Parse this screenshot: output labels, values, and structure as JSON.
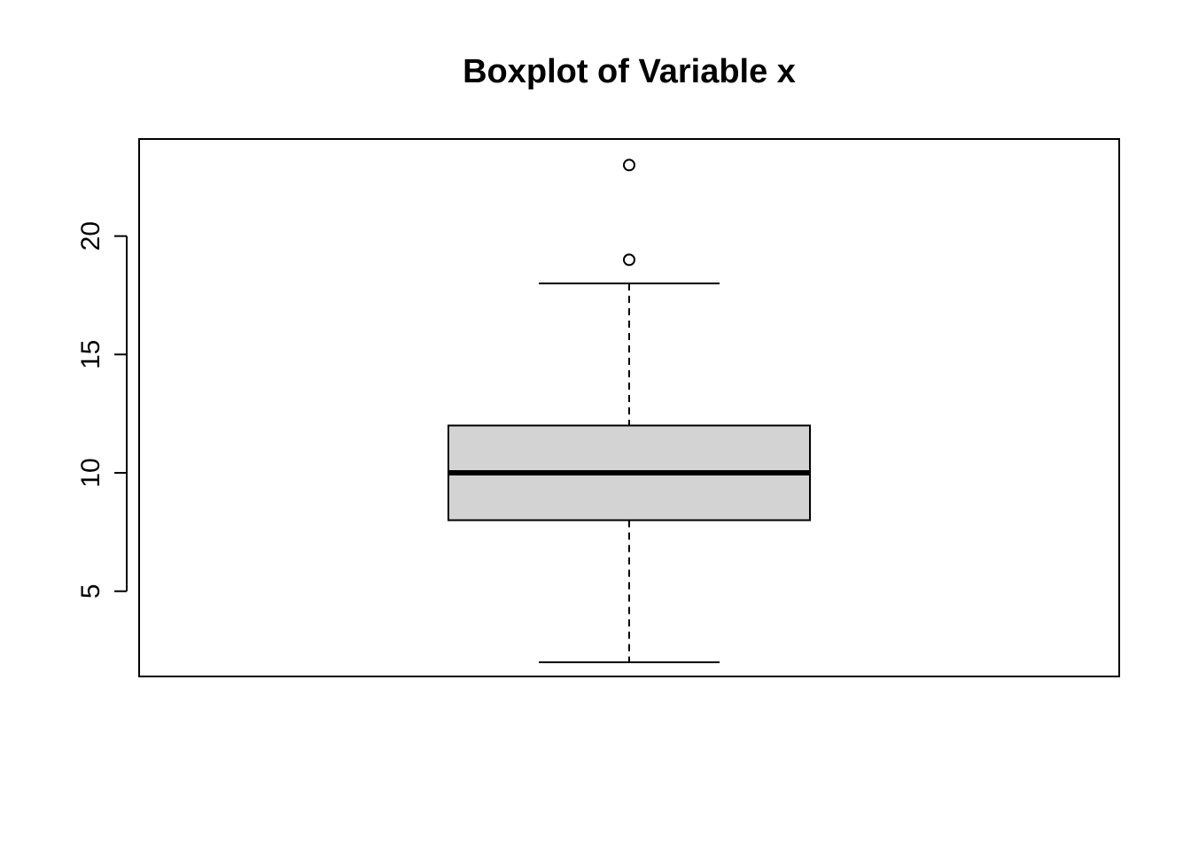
{
  "chart_data": {
    "type": "boxplot",
    "title": "Boxplot of Variable x",
    "xlabel": "",
    "ylabel": "",
    "ylim": [
      1.4,
      24.1
    ],
    "yticks": [
      5,
      10,
      15,
      20
    ],
    "grid": false,
    "series": [
      {
        "min": 2,
        "q1": 8,
        "median": 10,
        "q3": 12,
        "max": 18,
        "outliers": [
          19,
          23
        ]
      }
    ],
    "colors": {
      "box_fill": "#d3d3d3",
      "stroke": "#000000"
    }
  }
}
